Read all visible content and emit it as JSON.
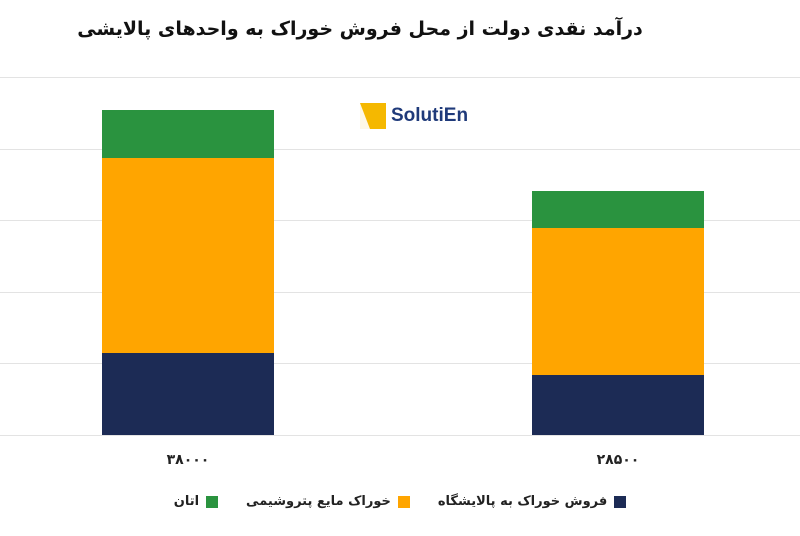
{
  "title": "درآمد نقدی دولت از محل فروش خوراک به واحدهای پالایشی",
  "watermark": {
    "text": "SolutiEn",
    "icon": "solutien-logo-icon",
    "color": "#1f3a7a",
    "accent": "#f5b800"
  },
  "chart_data": {
    "type": "bar",
    "stacked": true,
    "title": "درآمد نقدی دولت از محل فروش خوراک به واحدهای پالایشی",
    "categories": [
      "۳۸۰۰۰",
      "۲۸۵۰۰"
    ],
    "category_totals": [
      38000,
      28500
    ],
    "series": [
      {
        "name": "فروش خوراک به پالایشگاه",
        "color": "#1c2b55",
        "values": [
          9600,
          7000
        ]
      },
      {
        "name": "خوراک مایع پتروشیمی",
        "color": "#ffa500",
        "values": [
          22800,
          17200
        ]
      },
      {
        "name": "اتان",
        "color": "#2a933f",
        "values": [
          5600,
          4300
        ]
      }
    ],
    "xlabel": "",
    "ylabel": "",
    "ylim": [
      0,
      41850
    ],
    "y_tick_labels_visible": false,
    "grid": true,
    "gridline_count": 6,
    "legend_position": "bottom"
  },
  "legend": [
    {
      "label": "فروش خوراک به پالایشگاه",
      "color": "#1c2b55"
    },
    {
      "label": "خوراک مایع پتروشیمی",
      "color": "#ffa500"
    },
    {
      "label": "اتان",
      "color": "#2a933f"
    }
  ]
}
